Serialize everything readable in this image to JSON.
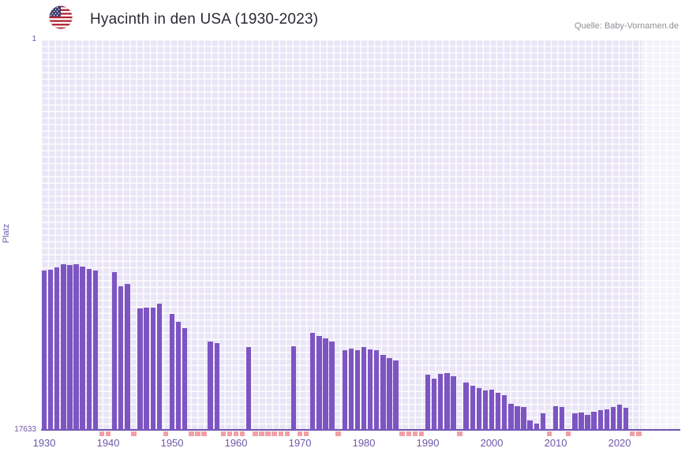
{
  "header": {
    "title": "Hyacinth in den USA (1930-2023)",
    "source": "Quelle: Baby-Vornamen.de",
    "flag_icon": "us-flag-icon"
  },
  "chart_data": {
    "type": "bar",
    "title": "Hyacinth in den USA (1930-2023)",
    "xlabel": "",
    "ylabel": "Platz",
    "y_axis": {
      "min": 1,
      "max": 17633,
      "inverted": true,
      "top_label": "1",
      "bottom_label": "17633"
    },
    "start_year": 1930,
    "end_year": 2023,
    "x_range": [
      1930,
      2030
    ],
    "x_ticks": [
      "1930",
      "1940",
      "1950",
      "1960",
      "1970",
      "1980",
      "1990",
      "2000",
      "2010",
      "2020"
    ],
    "ranks": [
      10450,
      10400,
      10300,
      10150,
      10200,
      10150,
      10250,
      10350,
      10450,
      null,
      null,
      10500,
      11150,
      11050,
      null,
      12150,
      12100,
      12100,
      11950,
      null,
      12400,
      12750,
      13050,
      null,
      null,
      null,
      13650,
      13700,
      null,
      null,
      null,
      null,
      13900,
      null,
      null,
      null,
      null,
      null,
      null,
      13850,
      null,
      null,
      13250,
      13400,
      13500,
      13650,
      null,
      14050,
      13950,
      14050,
      13900,
      14000,
      14050,
      14250,
      14400,
      14500,
      null,
      null,
      null,
      null,
      15150,
      15300,
      15100,
      15050,
      15200,
      null,
      15500,
      15650,
      15750,
      15850,
      15800,
      15950,
      16050,
      16450,
      16550,
      16600,
      17200,
      17350,
      16900,
      null,
      16550,
      16600,
      null,
      16900,
      16850,
      16950,
      16800,
      16750,
      16700,
      16600,
      16500,
      16650,
      null,
      null
    ],
    "grid": true,
    "legend": false,
    "colors": {
      "bar": "#7d55c2",
      "missing_marker": "#f2a0a5",
      "plot_background": "#e9e5f6",
      "grid_line": "#ffffff",
      "axis_line": "#6c55ae",
      "tick_label": "#6d58a9",
      "recent_band": "rgba(255,255,255,0.5)"
    }
  }
}
